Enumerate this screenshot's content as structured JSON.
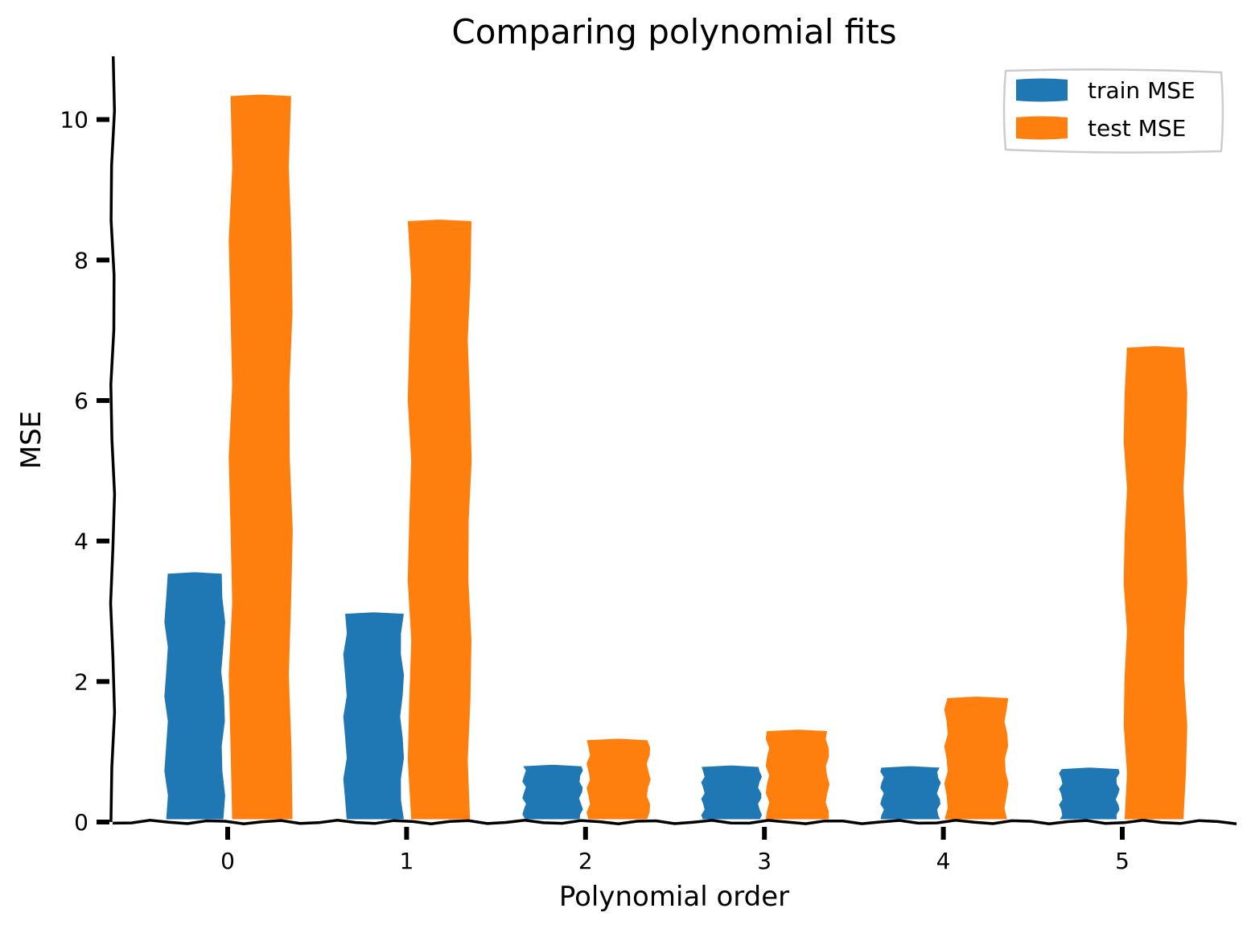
{
  "chart_data": {
    "type": "bar",
    "title": "Comparing polynomial fits",
    "xlabel": "Polynomial order",
    "ylabel": "MSE",
    "categories": [
      "0",
      "1",
      "2",
      "3",
      "4",
      "5"
    ],
    "series": [
      {
        "name": "train MSE",
        "color": "#1f77b4",
        "values": [
          3.55,
          2.98,
          0.81,
          0.8,
          0.79,
          0.77
        ]
      },
      {
        "name": "test MSE",
        "color": "#ff7f0e",
        "values": [
          10.35,
          8.57,
          1.18,
          1.31,
          1.78,
          6.77
        ]
      }
    ],
    "ylim": [
      0,
      10.9
    ],
    "yticks": [
      "0",
      "2",
      "4",
      "6",
      "8",
      "10"
    ],
    "legend_position": "top-right",
    "grid": false,
    "style": "xkcd"
  }
}
